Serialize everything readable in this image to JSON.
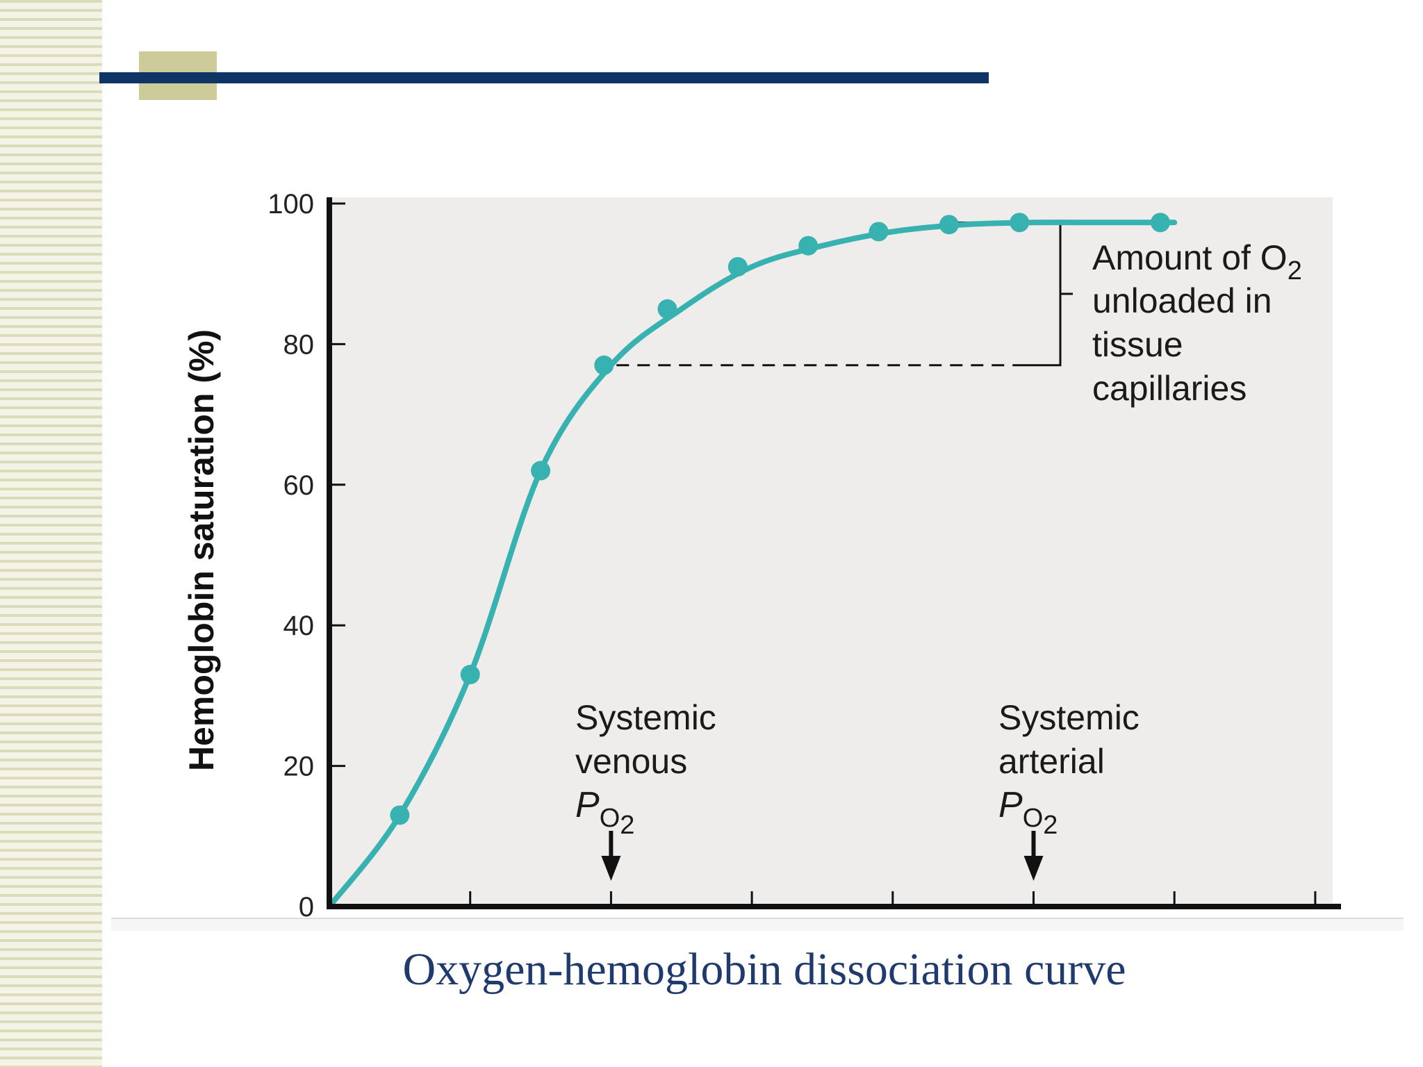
{
  "slide": {
    "caption": "Oxygen-hemoglobin dissociation curve",
    "colors": {
      "rule": "#0e3566",
      "block": "#cccb99",
      "stripes": "#dcdcbc",
      "caption": "#1f3b6e"
    }
  },
  "chart_data": {
    "type": "line",
    "title": "",
    "xlabel": "",
    "ylabel": "Hemoglobin saturation (%)",
    "x_tick_count": 7,
    "ylim": [
      0,
      100
    ],
    "y_ticks": [
      "0",
      "20",
      "40",
      "60",
      "80",
      "100"
    ],
    "grid": false,
    "legend": "none",
    "colors": {
      "curve": "#38b2b0",
      "plot_bg": "#efedeb",
      "axes": "#111111"
    },
    "series": [
      {
        "x": [
          0,
          0.5,
          1,
          1.5,
          2,
          2.5,
          3,
          3.5,
          4,
          4.5,
          5,
          5.5,
          6
        ],
        "values": [
          0,
          13,
          33,
          62,
          77,
          85,
          91,
          94,
          96,
          97,
          97.3,
          97.3,
          97.3
        ],
        "markers": [
          {
            "x": 0.5,
            "y": 13
          },
          {
            "x": 1,
            "y": 33
          },
          {
            "x": 1.5,
            "y": 62
          },
          {
            "x": 1.95,
            "y": 77
          },
          {
            "x": 2.4,
            "y": 85
          },
          {
            "x": 2.9,
            "y": 91
          },
          {
            "x": 3.4,
            "y": 94
          },
          {
            "x": 3.9,
            "y": 96
          },
          {
            "x": 4.4,
            "y": 97
          },
          {
            "x": 4.9,
            "y": 97.3
          },
          {
            "x": 5.9,
            "y": 97.3
          }
        ]
      }
    ],
    "annotations": {
      "unloaded": {
        "lines": [
          "Amount of O",
          "unloaded in",
          "tissue",
          "capillaries"
        ],
        "subscript": "2",
        "range": [
          77,
          97.3
        ]
      },
      "venous": {
        "lines": [
          "Systemic",
          "venous"
        ],
        "p": "P",
        "sub": "O",
        "subsub": "2",
        "x": 2
      },
      "arterial": {
        "lines": [
          "Systemic",
          "arterial"
        ],
        "p": "P",
        "sub": "O",
        "subsub": "2",
        "x": 5
      }
    }
  }
}
